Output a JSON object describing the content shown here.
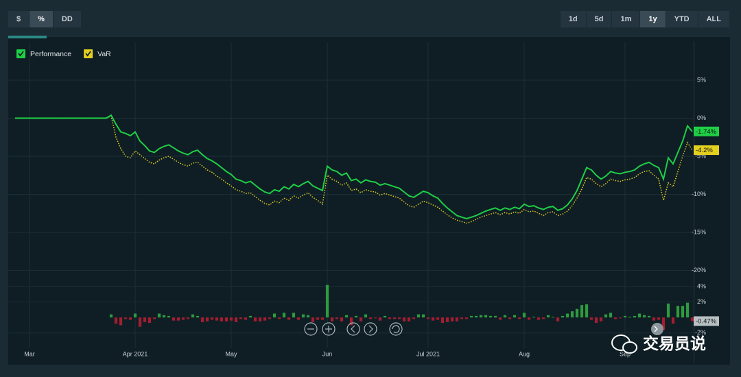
{
  "toolbar": {
    "left": [
      "$",
      "%",
      "DD"
    ],
    "active_left": "%",
    "right": [
      "1d",
      "5d",
      "1m",
      "1y",
      "YTD",
      "ALL"
    ],
    "active_right": "1y"
  },
  "watermark": "交易员说",
  "chart_data": {
    "type": "line",
    "xlim": [
      0,
      141
    ],
    "xticks": [
      {
        "value": 3,
        "label": "Mar"
      },
      {
        "value": 25,
        "label": "Apr 2021"
      },
      {
        "value": 45,
        "label": "May"
      },
      {
        "value": 65,
        "label": "Jun"
      },
      {
        "value": 86,
        "label": "Jul 2021"
      },
      {
        "value": 106,
        "label": "Aug"
      },
      {
        "value": 127,
        "label": "Sep"
      }
    ],
    "ylim": [
      -20.5,
      9.5
    ],
    "yticks": [
      {
        "value": 5,
        "label": "5%"
      },
      {
        "value": 0,
        "label": "0%"
      },
      {
        "value": -5,
        "label": "-5%"
      },
      {
        "value": -10,
        "label": "-10%"
      },
      {
        "value": -15,
        "label": "-15%"
      },
      {
        "value": -20,
        "label": "-20%"
      }
    ],
    "grid": true,
    "legend": "top-left",
    "series": [
      {
        "name": "Performance",
        "color": "#1fcf45",
        "style": "solid",
        "end_label": {
          "value": -1.74,
          "label": "-1.74%"
        },
        "values": [
          0,
          0,
          0,
          0,
          0,
          0,
          0,
          0,
          0,
          0,
          0,
          0,
          0,
          0,
          0,
          0,
          0,
          0,
          0,
          0,
          0.4,
          -0.8,
          -1.8,
          -2.0,
          -2.3,
          -1.8,
          -3.0,
          -3.6,
          -4.3,
          -4.5,
          -4.0,
          -3.7,
          -3.5,
          -3.9,
          -4.3,
          -4.6,
          -4.8,
          -4.4,
          -4.2,
          -4.8,
          -5.3,
          -5.6,
          -6.0,
          -6.5,
          -7.0,
          -7.4,
          -8.0,
          -8.2,
          -8.5,
          -8.3,
          -8.8,
          -9.3,
          -9.7,
          -9.9,
          -9.4,
          -9.6,
          -9.0,
          -9.3,
          -8.7,
          -9.0,
          -8.6,
          -8.3,
          -8.9,
          -9.2,
          -9.5,
          -6.3,
          -6.8,
          -7.0,
          -7.5,
          -7.2,
          -8.2,
          -8.0,
          -8.5,
          -8.1,
          -8.3,
          -8.4,
          -8.8,
          -8.6,
          -8.8,
          -9.0,
          -9.2,
          -9.7,
          -10.2,
          -10.4,
          -10.0,
          -9.6,
          -9.8,
          -10.2,
          -10.5,
          -11.2,
          -11.8,
          -12.3,
          -12.8,
          -13.0,
          -13.2,
          -13.0,
          -12.8,
          -12.5,
          -12.2,
          -12.0,
          -11.8,
          -12.1,
          -11.8,
          -12.0,
          -11.7,
          -11.9,
          -11.3,
          -11.6,
          -11.5,
          -11.8,
          -12.0,
          -11.7,
          -11.6,
          -12.1,
          -11.9,
          -11.4,
          -10.6,
          -9.5,
          -8.0,
          -6.5,
          -6.8,
          -7.5,
          -8.0,
          -7.6,
          -7.0,
          -7.2,
          -7.3,
          -7.1,
          -7.0,
          -6.8,
          -6.3,
          -6.0,
          -5.8,
          -6.2,
          -6.5,
          -8.0,
          -5.2,
          -6.0,
          -4.5,
          -3.0,
          -1.0,
          -1.74
        ]
      },
      {
        "name": "VaR",
        "color": "#e3cf1f",
        "style": "dotted",
        "end_label": {
          "value": -4.2,
          "label": "-4.2%"
        },
        "values": [
          0,
          0,
          0,
          0,
          0,
          0,
          0,
          0,
          0,
          0,
          0,
          0,
          0,
          0,
          0,
          0,
          0,
          0,
          0,
          0,
          0.3,
          -2.5,
          -4.0,
          -5.0,
          -5.2,
          -4.3,
          -4.8,
          -5.3,
          -5.8,
          -6.0,
          -5.5,
          -5.2,
          -5.0,
          -5.4,
          -5.8,
          -6.1,
          -6.3,
          -5.9,
          -5.8,
          -6.3,
          -6.8,
          -7.1,
          -7.6,
          -8.0,
          -8.5,
          -8.9,
          -9.4,
          -9.6,
          -9.9,
          -9.8,
          -10.3,
          -10.8,
          -11.2,
          -11.4,
          -10.9,
          -11.1,
          -10.5,
          -10.8,
          -10.2,
          -10.5,
          -10.1,
          -9.8,
          -10.4,
          -10.8,
          -11.3,
          -7.5,
          -8.0,
          -8.3,
          -8.8,
          -8.5,
          -9.5,
          -9.3,
          -9.8,
          -9.4,
          -9.6,
          -9.7,
          -10.1,
          -9.9,
          -10.1,
          -10.3,
          -10.5,
          -11.0,
          -11.5,
          -11.7,
          -11.3,
          -10.9,
          -11.1,
          -11.4,
          -11.7,
          -12.2,
          -12.7,
          -13.1,
          -13.4,
          -13.6,
          -13.8,
          -13.6,
          -13.3,
          -13.0,
          -12.8,
          -12.6,
          -12.4,
          -12.7,
          -12.4,
          -12.6,
          -12.3,
          -12.5,
          -12.0,
          -12.3,
          -12.2,
          -12.5,
          -12.8,
          -12.4,
          -12.3,
          -12.8,
          -12.6,
          -12.2,
          -11.5,
          -10.5,
          -9.3,
          -7.8,
          -8.0,
          -8.6,
          -9.0,
          -8.6,
          -8.0,
          -8.2,
          -8.3,
          -8.1,
          -8.0,
          -7.8,
          -7.3,
          -7.0,
          -6.9,
          -7.5,
          -8.0,
          -10.8,
          -8.5,
          -9.0,
          -7.0,
          -5.0,
          -3.2,
          -4.2
        ]
      }
    ],
    "returns": {
      "type": "bar",
      "ylim": [
        -4.5,
        5.5
      ],
      "yticks": [
        {
          "value": 4,
          "label": "4%"
        },
        {
          "value": 2,
          "label": "2%"
        },
        {
          "value": -2,
          "label": "-2%"
        }
      ],
      "positive_color": "#2f9a3f",
      "negative_color": "#a51d30",
      "end_label": {
        "value": -0.47,
        "label": "-0.47%"
      },
      "values": [
        null,
        null,
        null,
        null,
        null,
        null,
        null,
        null,
        null,
        null,
        null,
        null,
        null,
        null,
        null,
        null,
        null,
        null,
        null,
        null,
        0.4,
        -0.8,
        -1.0,
        -0.2,
        -0.3,
        0.5,
        -1.2,
        -0.6,
        -0.7,
        -0.2,
        0.5,
        0.3,
        0.2,
        -0.4,
        -0.4,
        -0.3,
        -0.2,
        0.4,
        0.2,
        -0.6,
        -0.5,
        -0.3,
        -0.4,
        -0.5,
        -0.5,
        -0.4,
        -0.6,
        -0.2,
        -0.3,
        0.2,
        -0.5,
        -0.5,
        -0.4,
        -0.2,
        0.5,
        -0.2,
        0.6,
        -0.3,
        0.6,
        -0.3,
        0.4,
        0.3,
        -0.6,
        -0.3,
        -0.3,
        4.2,
        -0.5,
        -0.2,
        -0.5,
        0.3,
        -1.0,
        0.2,
        -0.5,
        0.4,
        -0.2,
        -0.1,
        -0.4,
        0.2,
        -0.2,
        -0.2,
        -0.2,
        -0.5,
        -0.5,
        -0.2,
        0.4,
        0.4,
        -0.2,
        -0.4,
        -0.3,
        -0.7,
        -0.6,
        -0.5,
        -0.5,
        -0.2,
        -0.2,
        0.2,
        0.2,
        0.3,
        0.3,
        0.2,
        0.2,
        -0.3,
        0.3,
        -0.2,
        0.3,
        -0.2,
        0.6,
        -0.3,
        0.1,
        -0.3,
        -0.2,
        0.3,
        0.1,
        -0.5,
        0.2,
        0.5,
        0.8,
        1.1,
        1.6,
        1.7,
        -0.3,
        -0.7,
        -0.5,
        0.4,
        0.6,
        -0.2,
        -0.1,
        0.2,
        0.1,
        0.2,
        0.5,
        0.3,
        0.2,
        -0.4,
        -0.3,
        -1.6,
        1.8,
        -0.8,
        1.5,
        1.5,
        1.9,
        -0.47
      ]
    }
  }
}
